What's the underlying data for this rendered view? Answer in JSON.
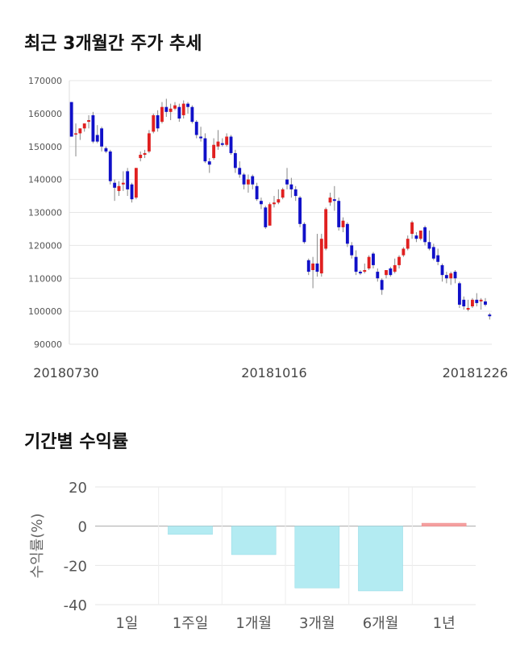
{
  "titles": {
    "price": "최근 3개월간 주가 추세",
    "returns": "기간별 수익률"
  },
  "colors": {
    "up": "#e02020",
    "down": "#1010c8",
    "bar_neg": "#b3ebf2",
    "bar_pos": "#f5a0a0",
    "wick": "#888888"
  },
  "chart_data": [
    {
      "type": "candlestick",
      "title": "최근 3개월간 주가 추세",
      "ylim": [
        90000,
        170000
      ],
      "y_ticks": [
        90000,
        100000,
        110000,
        120000,
        130000,
        140000,
        150000,
        160000,
        170000
      ],
      "y_tick_labels": [
        "90000",
        "100000",
        "110000",
        "120000",
        "130000",
        "140000",
        "150000",
        "160000",
        "170000"
      ],
      "x_labels": [
        "20180730",
        "20181016",
        "20181226"
      ],
      "candles": [
        [
          163500,
          163500,
          153000,
          153000
        ],
        [
          154000,
          157000,
          147000,
          154000
        ],
        [
          154000,
          155500,
          152000,
          155500
        ],
        [
          155500,
          157000,
          154500,
          157000
        ],
        [
          157500,
          159500,
          155500,
          158000
        ],
        [
          159500,
          160500,
          151000,
          151500
        ],
        [
          153500,
          156500,
          151000,
          151500
        ],
        [
          155500,
          156000,
          148500,
          150000
        ],
        [
          149500,
          150000,
          148000,
          148500
        ],
        [
          148500,
          149000,
          138500,
          139500
        ],
        [
          139000,
          140000,
          133500,
          137500
        ],
        [
          136500,
          139500,
          135000,
          138000
        ],
        [
          138500,
          142500,
          136500,
          139000
        ],
        [
          142500,
          143500,
          135000,
          137000
        ],
        [
          138500,
          139000,
          133000,
          134000
        ],
        [
          134500,
          143500,
          134000,
          143500
        ],
        [
          146500,
          148500,
          145500,
          147500
        ],
        [
          147500,
          149000,
          146500,
          148000
        ],
        [
          148500,
          155000,
          148000,
          154000
        ],
        [
          154500,
          160000,
          154000,
          159500
        ],
        [
          159500,
          161000,
          154500,
          155500
        ],
        [
          157500,
          163500,
          157000,
          162000
        ],
        [
          162000,
          164500,
          159000,
          160500
        ],
        [
          160500,
          163000,
          158000,
          161500
        ],
        [
          161500,
          163500,
          161000,
          162500
        ],
        [
          162000,
          163000,
          157500,
          158500
        ],
        [
          159500,
          164000,
          158500,
          163000
        ],
        [
          163000,
          163500,
          160000,
          162000
        ],
        [
          162000,
          162500,
          157000,
          157500
        ],
        [
          157500,
          158000,
          152500,
          153500
        ],
        [
          153000,
          156000,
          151500,
          152500
        ],
        [
          152500,
          154000,
          145000,
          145500
        ],
        [
          145500,
          146500,
          142000,
          144500
        ],
        [
          146500,
          152500,
          146000,
          150500
        ],
        [
          150000,
          155000,
          149000,
          151500
        ],
        [
          151000,
          152500,
          150000,
          150500
        ],
        [
          150500,
          154000,
          150000,
          153000
        ],
        [
          153000,
          153500,
          147500,
          148000
        ],
        [
          148000,
          149000,
          142000,
          143500
        ],
        [
          143500,
          145500,
          140500,
          141500
        ],
        [
          141500,
          142000,
          137000,
          138500
        ],
        [
          138500,
          141500,
          136000,
          140000
        ],
        [
          141000,
          141500,
          137000,
          138500
        ],
        [
          138000,
          139000,
          133500,
          134000
        ],
        [
          133500,
          134500,
          131000,
          132500
        ],
        [
          131500,
          132000,
          125000,
          125500
        ],
        [
          126000,
          133000,
          126000,
          132500
        ],
        [
          132500,
          135000,
          131500,
          133000
        ],
        [
          133000,
          137000,
          132500,
          134000
        ],
        [
          134500,
          137500,
          134000,
          137000
        ],
        [
          140000,
          143500,
          137000,
          138500
        ],
        [
          138500,
          140500,
          134500,
          137000
        ],
        [
          137000,
          138000,
          133500,
          135000
        ],
        [
          134500,
          135000,
          125500,
          126500
        ],
        [
          126500,
          127000,
          120500,
          121000
        ],
        [
          115500,
          116000,
          111000,
          112000
        ],
        [
          112500,
          116500,
          107000,
          114500
        ],
        [
          114500,
          123500,
          110500,
          112000
        ],
        [
          111500,
          123500,
          110500,
          122000
        ],
        [
          119000,
          131500,
          118500,
          131000
        ],
        [
          133000,
          136000,
          132000,
          134500
        ],
        [
          134000,
          138000,
          130500,
          133500
        ],
        [
          133500,
          134500,
          124500,
          125500
        ],
        [
          125500,
          128500,
          124000,
          127500
        ],
        [
          126500,
          127000,
          119500,
          120500
        ],
        [
          120000,
          121000,
          116000,
          117000
        ],
        [
          116500,
          118500,
          111000,
          112000
        ],
        [
          112000,
          112500,
          111000,
          111500
        ],
        [
          112000,
          114500,
          111500,
          112500
        ],
        [
          113000,
          117000,
          112500,
          116500
        ],
        [
          117500,
          118000,
          113000,
          114000
        ],
        [
          112000,
          113000,
          109000,
          110000
        ],
        [
          109500,
          110000,
          105000,
          106500
        ],
        [
          111000,
          112500,
          110000,
          112500
        ],
        [
          113000,
          113500,
          110500,
          111000
        ],
        [
          112000,
          116000,
          111500,
          114000
        ],
        [
          114000,
          117000,
          113000,
          116500
        ],
        [
          117000,
          119500,
          116500,
          119000
        ],
        [
          119000,
          123000,
          118500,
          122000
        ],
        [
          123500,
          127500,
          122000,
          127000
        ],
        [
          123000,
          124000,
          121000,
          122000
        ],
        [
          122000,
          124500,
          121500,
          124500
        ],
        [
          125500,
          126000,
          120000,
          121000
        ],
        [
          121000,
          124500,
          118500,
          119000
        ],
        [
          119500,
          120500,
          115500,
          116000
        ],
        [
          117000,
          119000,
          114000,
          115000
        ],
        [
          114000,
          114500,
          109000,
          111000
        ],
        [
          111000,
          112000,
          108500,
          110000
        ],
        [
          110000,
          112000,
          108000,
          111500
        ],
        [
          112000,
          112500,
          108500,
          110000
        ],
        [
          108500,
          109000,
          101000,
          102000
        ],
        [
          103500,
          104500,
          100500,
          101500
        ],
        [
          100500,
          103500,
          100000,
          101000
        ],
        [
          101500,
          104000,
          101000,
          103500
        ],
        [
          103500,
          105500,
          101500,
          102500
        ],
        [
          103000,
          104000,
          100500,
          103500
        ],
        [
          103000,
          104000,
          101500,
          102000
        ],
        [
          99000,
          99500,
          97500,
          98500
        ]
      ]
    },
    {
      "type": "bar",
      "title": "기간별 수익률",
      "ylabel": "수익률(%)",
      "ylim": [
        -40,
        20
      ],
      "y_ticks": [
        -40,
        -20,
        0,
        20
      ],
      "y_tick_labels": [
        "-40",
        "-20",
        "0",
        "20"
      ],
      "categories": [
        "1일",
        "1주일",
        "1개월",
        "3개월",
        "6개월",
        "1년"
      ],
      "values": [
        0,
        -4.2,
        -14.5,
        -31.5,
        -33.0,
        1.5
      ]
    }
  ]
}
